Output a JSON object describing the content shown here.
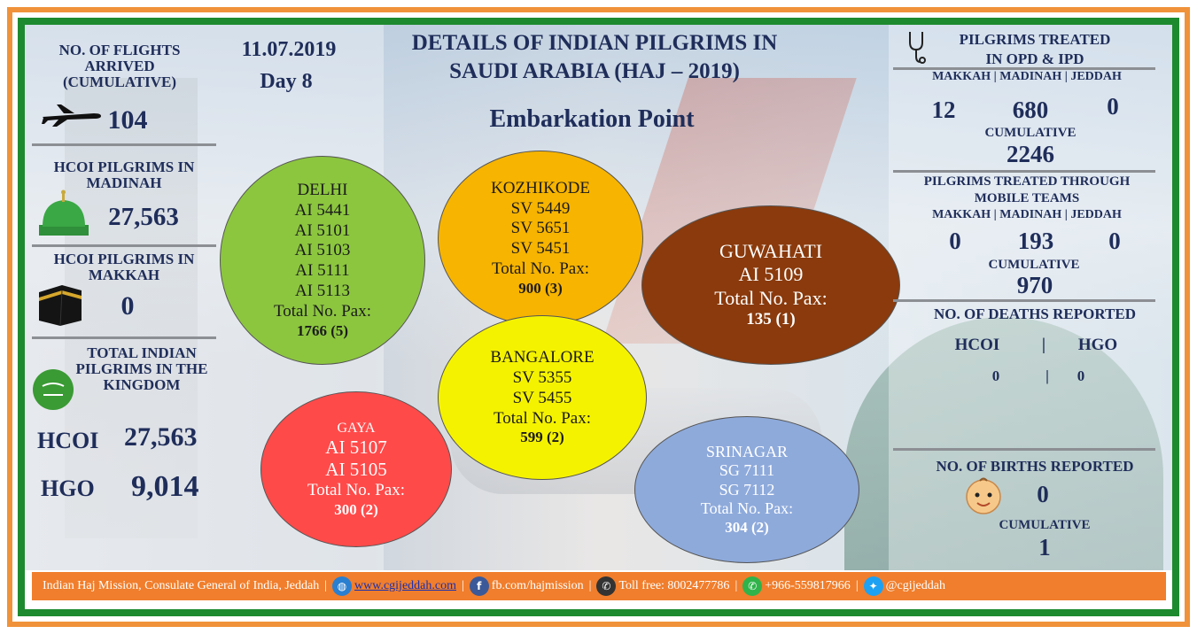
{
  "left": {
    "flights_label": "NO. OF FLIGHTS ARRIVED (CUMULATIVE)",
    "flights_value": "104",
    "madinah_label": "HCOI PILGRIMS IN MADINAH",
    "madinah_value": "27,563",
    "makkah_label": "HCOI PILGRIMS IN MAKKAH",
    "makkah_value": "0",
    "total_label": "TOTAL INDIAN PILGRIMS IN THE KINGDOM",
    "hcoi_label": "HCOI",
    "hcoi_value": "27,563",
    "hgo_label": "HGO",
    "hgo_value": "9,014"
  },
  "header": {
    "date": "11.07.2019",
    "day": "Day 8",
    "title_line1": "DETAILS OF INDIAN PILGRIMS IN",
    "title_line2": "SAUDI ARABIA (HAJ – 2019)",
    "subtitle": "Embarkation Point"
  },
  "embarkation": {
    "delhi": {
      "name": "DELHI",
      "flights": [
        "AI 5441",
        "AI 5101",
        "AI 5103",
        "AI 5111",
        "AI 5113"
      ],
      "pax_label": "Total No. Pax:",
      "pax": "1766 (5)",
      "color": "#8cc63f"
    },
    "kozhikode": {
      "name": "KOZHIKODE",
      "flights": [
        "SV 5449",
        "SV 5651",
        "SV 5451"
      ],
      "pax_label": "Total No. Pax:",
      "pax": "900 (3)",
      "color": "#f7b400"
    },
    "guwahati": {
      "name": "GUWAHATI",
      "flights": [
        "AI 5109"
      ],
      "pax_label": "Total No. Pax:",
      "pax": "135 (1)",
      "color": "#8a3a0c"
    },
    "bangalore": {
      "name": "BANGALORE",
      "flights": [
        "SV 5355",
        "SV 5455"
      ],
      "pax_label": "Total No. Pax:",
      "pax": "599 (2)",
      "color": "#f5f200"
    },
    "gaya": {
      "name": "GAYA",
      "flights": [
        "AI 5107",
        "AI 5105"
      ],
      "pax_label": "Total No. Pax:",
      "pax": "300 (2)",
      "color": "#ff4a4a"
    },
    "srinagar": {
      "name": "SRINAGAR",
      "flights": [
        "SG 7111",
        "SG 7112"
      ],
      "pax_label": "Total No. Pax:",
      "pax": "304 (2)",
      "color": "#8eaadb"
    }
  },
  "right": {
    "opd_label_1": "PILGRIMS TREATED",
    "opd_label_2": "IN OPD & IPD",
    "cities": "MAKKAH | MADINAH | JEDDAH",
    "opd_makkah": "12",
    "opd_madinah": "680",
    "opd_jeddah": "0",
    "cumulative_label": "CUMULATIVE",
    "opd_cumulative": "2246",
    "mobile_label_1": "PILGRIMS TREATED THROUGH",
    "mobile_label_2": "MOBILE TEAMS",
    "mobile_makkah": "0",
    "mobile_madinah": "193",
    "mobile_jeddah": "0",
    "mobile_cumulative": "970",
    "deaths_label": "NO. OF DEATHS REPORTED",
    "deaths_hcoi_label": "HCOI",
    "deaths_bar": "|",
    "deaths_hgo_label": "HGO",
    "deaths_hcoi": "0",
    "deaths_hgo": "0",
    "births_label": "NO. OF BIRTHS REPORTED",
    "births_value": "0",
    "births_cumulative": "1"
  },
  "footer": {
    "mission": "Indian Haj Mission, Consulate General of India, Jeddah",
    "website": "www.cgijeddah.com",
    "facebook": "fb.com/hajmission",
    "tollfree": "Toll free: 8002477786",
    "whatsapp": "+966-559817966",
    "twitter": "@cgijeddah",
    "sep": "|"
  },
  "colors": {
    "orange": "#f07e2c",
    "green": "#1d8a2f",
    "navy": "#1f2d5a"
  },
  "icons": [
    "airplane-icon",
    "green-dome-icon",
    "kaaba-icon",
    "saudi-flag-icon",
    "stethoscope-icon",
    "baby-face-icon",
    "globe-icon",
    "facebook-icon",
    "phone-icon",
    "whatsapp-icon",
    "twitter-icon"
  ]
}
